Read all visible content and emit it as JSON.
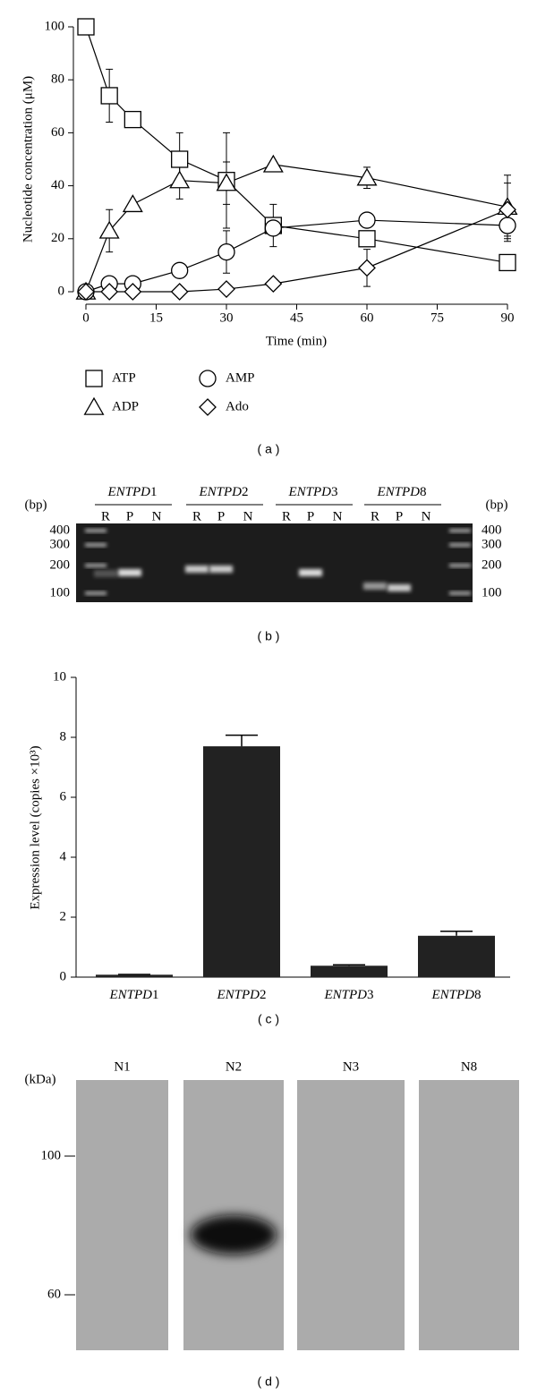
{
  "chart_data": [
    {
      "type": "line",
      "panel_label": "( a )",
      "x_label": "Time (min)",
      "y_label": "Nucleotide concentration (μM)",
      "xlim": [
        0,
        90
      ],
      "xticks": [
        0,
        15,
        30,
        45,
        60,
        75,
        90
      ],
      "ylim": [
        0,
        100
      ],
      "yticks": [
        0,
        20,
        40,
        60,
        80,
        100
      ],
      "series": [
        {
          "name": "ATP",
          "marker": "square",
          "color": "#000000",
          "x": [
            0,
            5,
            10,
            20,
            30,
            40,
            60,
            90
          ],
          "values": [
            100,
            74,
            65,
            50,
            42,
            25,
            20,
            11
          ],
          "errors": [
            null,
            10,
            null,
            10,
            18,
            8,
            null,
            null
          ]
        },
        {
          "name": "ADP",
          "marker": "triangle",
          "color": "#000000",
          "x": [
            0,
            5,
            10,
            20,
            30,
            40,
            60,
            90
          ],
          "values": [
            0,
            23,
            33,
            42,
            41,
            48,
            43,
            32
          ],
          "errors": [
            null,
            8,
            null,
            7,
            8,
            null,
            4,
            12
          ]
        },
        {
          "name": "AMP",
          "marker": "circle",
          "color": "#000000",
          "x": [
            0,
            5,
            10,
            20,
            30,
            40,
            60,
            90
          ],
          "values": [
            0,
            3,
            3,
            8,
            15,
            24,
            27,
            25
          ],
          "errors": [
            null,
            null,
            null,
            null,
            8,
            null,
            null,
            6
          ]
        },
        {
          "name": "Ado",
          "marker": "diamond",
          "color": "#000000",
          "x": [
            0,
            5,
            10,
            20,
            30,
            40,
            60,
            90
          ],
          "values": [
            0,
            0,
            0,
            0,
            1,
            3,
            9,
            31
          ],
          "errors": [
            null,
            null,
            null,
            null,
            null,
            null,
            7,
            10
          ]
        }
      ]
    },
    {
      "type": "bar",
      "panel_label": "( c )",
      "y_label": "Expression level (copies ×10³)",
      "categories": [
        "ENTPD1",
        "ENTPD2",
        "ENTPD3",
        "ENTPD8"
      ],
      "values": [
        0.08,
        7.7,
        0.38,
        1.38
      ],
      "errors": [
        0.01,
        0.37,
        0.03,
        0.15
      ],
      "color": "#222222",
      "ylim": [
        0,
        10
      ],
      "yticks": [
        0,
        2,
        4,
        6,
        8,
        10
      ]
    }
  ],
  "gel": {
    "panel_label": "( b )",
    "unit": "(bp)",
    "genes": [
      "ENTPD1",
      "ENTPD2",
      "ENTPD3",
      "ENTPD8"
    ],
    "lanes": [
      "R",
      "P",
      "N"
    ],
    "sizes": [
      400,
      300,
      200,
      100
    ]
  },
  "blot": {
    "panel_label": "( d )",
    "unit": "(kDa)",
    "lanes": [
      "N1",
      "N2",
      "N3",
      "N8"
    ],
    "sizes": [
      100,
      60
    ]
  }
}
